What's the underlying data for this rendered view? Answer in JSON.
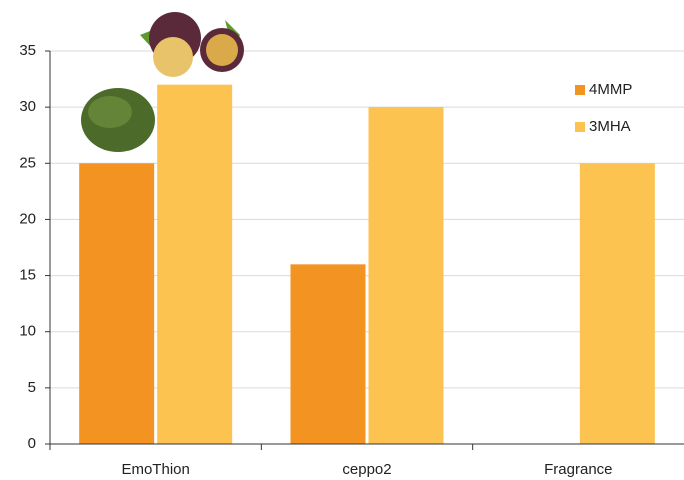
{
  "chart_data": {
    "type": "bar",
    "categories": [
      "EmoThion",
      "ceppo2",
      "Fragrance"
    ],
    "series": [
      {
        "name": "4MMP",
        "color": "#f39422",
        "values": [
          25,
          16,
          0
        ]
      },
      {
        "name": "3MHA",
        "color": "#fcc350",
        "values": [
          32,
          30,
          25
        ]
      }
    ],
    "ylim": [
      0,
      35
    ],
    "yticks": [
      0,
      5,
      10,
      15,
      20,
      25,
      30,
      35
    ],
    "grid": true,
    "legend": "upper right"
  }
}
